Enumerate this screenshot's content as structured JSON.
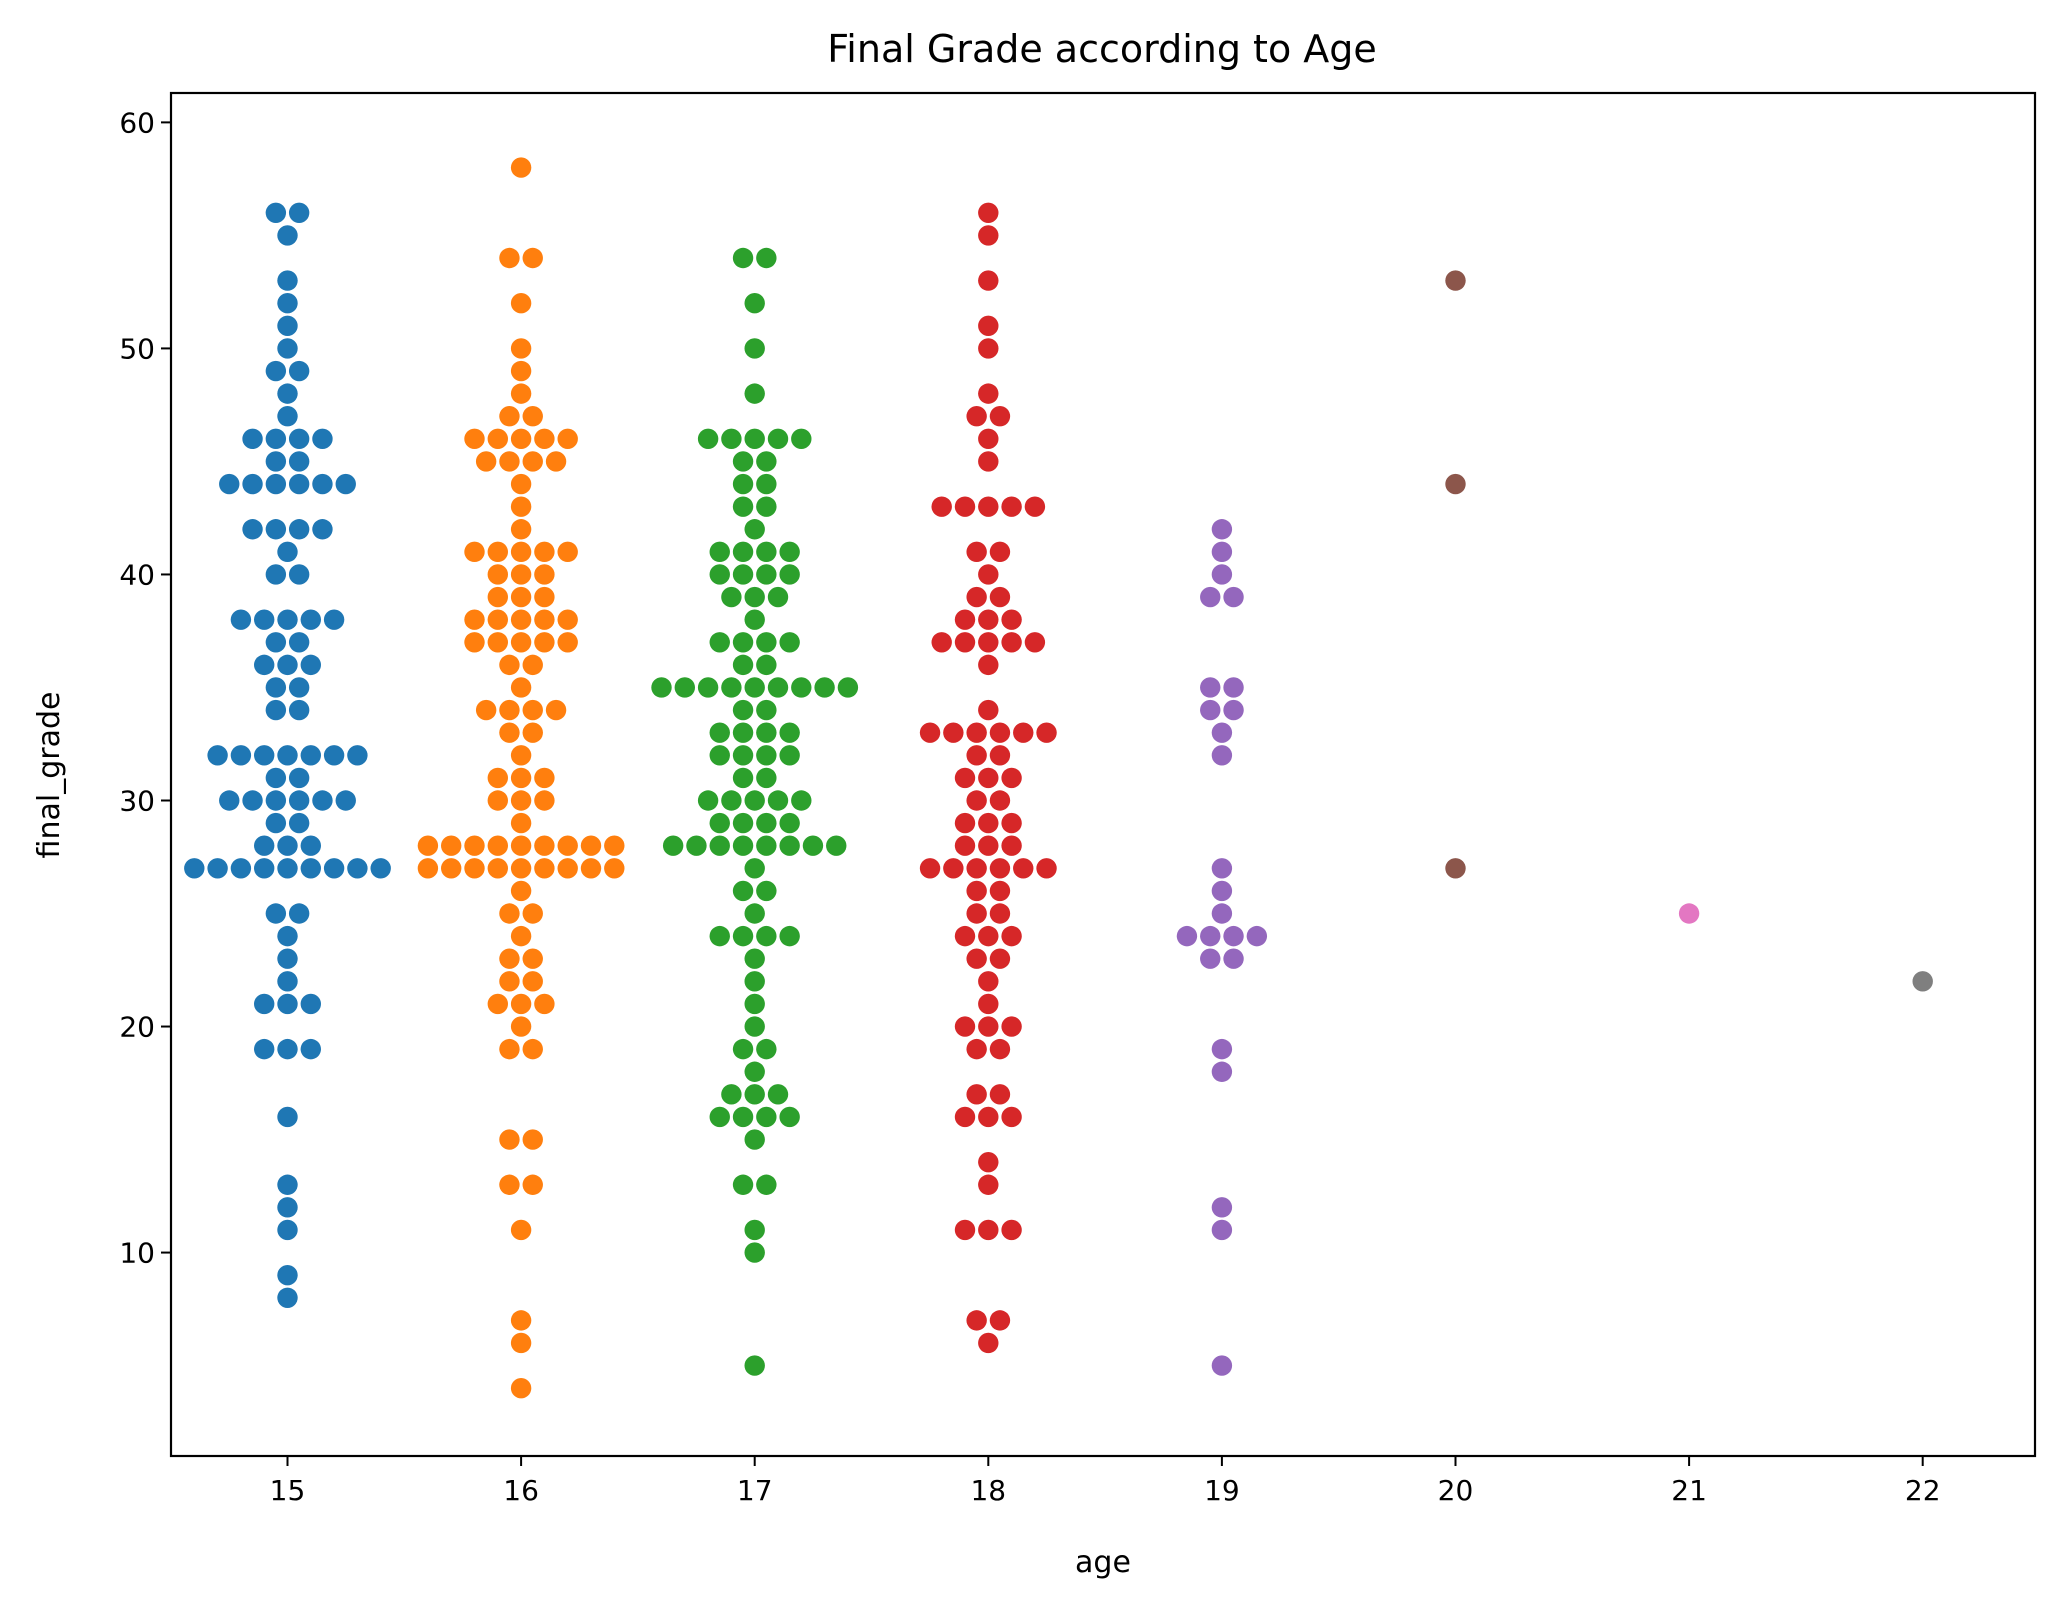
{
  "chart_data": {
    "type": "scatter",
    "subtype": "swarm",
    "title": "Final Grade according to Age",
    "xlabel": "age",
    "ylabel": "final_grade",
    "categories": [
      "15",
      "16",
      "17",
      "18",
      "19",
      "20",
      "21",
      "22"
    ],
    "xticks": [
      "15",
      "16",
      "17",
      "18",
      "19",
      "20",
      "21",
      "22"
    ],
    "yticks": [
      "10",
      "20",
      "30",
      "40",
      "50",
      "60"
    ],
    "ylim": [
      1,
      61.3
    ],
    "grid": false,
    "legend": false,
    "series": [
      {
        "color": "#1f77b4",
        "values": [
          8,
          9,
          11,
          12,
          13,
          16,
          19,
          19,
          19,
          21,
          21,
          21,
          22,
          23,
          24,
          25,
          25,
          27,
          27,
          27,
          27,
          27,
          27,
          27,
          27,
          27,
          28,
          28,
          28,
          29,
          29,
          30,
          30,
          30,
          30,
          30,
          30,
          31,
          31,
          32,
          32,
          32,
          32,
          32,
          32,
          32,
          34,
          34,
          35,
          35,
          36,
          36,
          36,
          37,
          37,
          38,
          38,
          38,
          38,
          38,
          40,
          40,
          41,
          42,
          42,
          42,
          42,
          44,
          44,
          44,
          44,
          44,
          44,
          45,
          45,
          46,
          46,
          46,
          46,
          47,
          48,
          49,
          49,
          50,
          51,
          52,
          53,
          55,
          56,
          56
        ]
      },
      {
        "color": "#ff7f0e",
        "values": [
          4,
          6,
          7,
          11,
          13,
          13,
          15,
          15,
          19,
          19,
          20,
          21,
          21,
          21,
          22,
          22,
          23,
          23,
          24,
          25,
          25,
          26,
          27,
          27,
          27,
          27,
          27,
          27,
          27,
          27,
          27,
          28,
          28,
          28,
          28,
          28,
          28,
          28,
          28,
          28,
          29,
          30,
          30,
          30,
          31,
          31,
          31,
          32,
          33,
          33,
          34,
          34,
          34,
          34,
          35,
          36,
          36,
          37,
          37,
          37,
          37,
          37,
          38,
          38,
          38,
          38,
          38,
          39,
          39,
          39,
          40,
          40,
          40,
          41,
          41,
          41,
          41,
          41,
          42,
          43,
          44,
          45,
          45,
          45,
          45,
          46,
          46,
          46,
          46,
          46,
          47,
          47,
          48,
          49,
          50,
          52,
          54,
          54,
          58
        ]
      },
      {
        "color": "#2ca02c",
        "values": [
          5,
          10,
          11,
          13,
          13,
          15,
          16,
          16,
          16,
          16,
          17,
          17,
          17,
          18,
          19,
          19,
          20,
          21,
          22,
          23,
          24,
          24,
          24,
          24,
          25,
          26,
          26,
          27,
          28,
          28,
          28,
          28,
          28,
          28,
          28,
          28,
          29,
          29,
          29,
          29,
          30,
          30,
          30,
          30,
          30,
          31,
          31,
          32,
          32,
          32,
          32,
          33,
          33,
          33,
          33,
          34,
          34,
          35,
          35,
          35,
          35,
          35,
          35,
          35,
          35,
          35,
          36,
          36,
          37,
          37,
          37,
          37,
          38,
          39,
          39,
          39,
          40,
          40,
          40,
          40,
          41,
          41,
          41,
          41,
          42,
          43,
          43,
          44,
          44,
          45,
          45,
          46,
          46,
          46,
          46,
          46,
          48,
          50,
          52,
          54,
          54
        ]
      },
      {
        "color": "#d62728",
        "values": [
          6,
          7,
          7,
          11,
          11,
          11,
          13,
          14,
          16,
          16,
          16,
          17,
          17,
          19,
          19,
          20,
          20,
          20,
          21,
          22,
          23,
          23,
          24,
          24,
          24,
          25,
          25,
          26,
          26,
          27,
          27,
          27,
          27,
          27,
          27,
          28,
          28,
          28,
          29,
          29,
          29,
          30,
          30,
          31,
          31,
          31,
          32,
          32,
          33,
          33,
          33,
          33,
          33,
          33,
          34,
          36,
          37,
          37,
          37,
          37,
          37,
          38,
          38,
          38,
          39,
          39,
          40,
          41,
          41,
          43,
          43,
          43,
          43,
          43,
          45,
          46,
          47,
          47,
          48,
          50,
          51,
          53,
          55,
          56
        ]
      },
      {
        "color": "#9467bd",
        "values": [
          5,
          11,
          12,
          18,
          19,
          23,
          23,
          24,
          24,
          24,
          24,
          25,
          26,
          27,
          32,
          33,
          34,
          34,
          35,
          35,
          39,
          39,
          40,
          41,
          42
        ]
      },
      {
        "color": "#8c564b",
        "values": [
          27,
          44,
          53
        ]
      },
      {
        "color": "#e377c2",
        "values": [
          25
        ]
      },
      {
        "color": "#7f7f7f",
        "values": [
          22
        ]
      }
    ]
  }
}
